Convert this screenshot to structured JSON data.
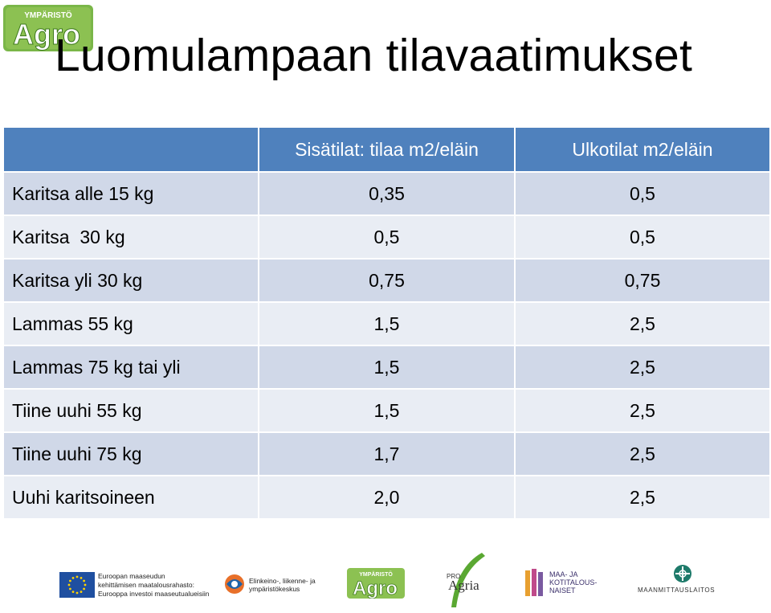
{
  "logo_top": {
    "small_text": "YMPÄRISTÖ",
    "big_text": "Agro"
  },
  "title": "Luomulampaan tilavaatimukset",
  "table": {
    "headers": [
      "",
      "Sisätilat: tilaa m2/eläin",
      "Ulkotilat m2/eläin"
    ],
    "rows": [
      {
        "label": "Karitsa alle 15 kg",
        "indoor": "0,35",
        "outdoor": "0,5"
      },
      {
        "label": "Karitsa  30 kg",
        "indoor": "0,5",
        "outdoor": "0,5"
      },
      {
        "label": "Karitsa yli 30 kg",
        "indoor": "0,75",
        "outdoor": "0,75"
      },
      {
        "label": "Lammas 55 kg",
        "indoor": "1,5",
        "outdoor": "2,5"
      },
      {
        "label": "Lammas 75 kg tai yli",
        "indoor": "1,5",
        "outdoor": "2,5"
      },
      {
        "label": "Tiine uuhi 55 kg",
        "indoor": "1,5",
        "outdoor": "2,5"
      },
      {
        "label": "Tiine uuhi 75 kg",
        "indoor": "1,7",
        "outdoor": "2,5"
      },
      {
        "label": "Uuhi karitsoineen",
        "indoor": "2,0",
        "outdoor": "2,5"
      }
    ]
  },
  "footer": {
    "eu": {
      "line1": "Euroopan maaseudun",
      "line2": "kehittämisen maatalousrahasto:",
      "line3": "Eurooppa investoi maaseutualueisiin"
    },
    "ely": {
      "line1": "Elinkeino-, liikenne- ja",
      "line2": "ympäristökeskus"
    },
    "agro": {
      "small_text": "YMPÄRISTÖ",
      "big_text": "Agro"
    },
    "proagria": {
      "small_text": "PRO",
      "big_text": "Agria"
    },
    "mkn": {
      "line1": "MAA- JA",
      "line2": "KOTITALOUS-",
      "line3": "NAISET"
    },
    "mml": {
      "text": "MAANMITTAUSLAITOS"
    }
  },
  "colors": {
    "header_bg": "#4f81bd",
    "row_dark": "#d0d8e8",
    "row_light": "#e9edf4",
    "agro_green": "#6aa84f"
  }
}
